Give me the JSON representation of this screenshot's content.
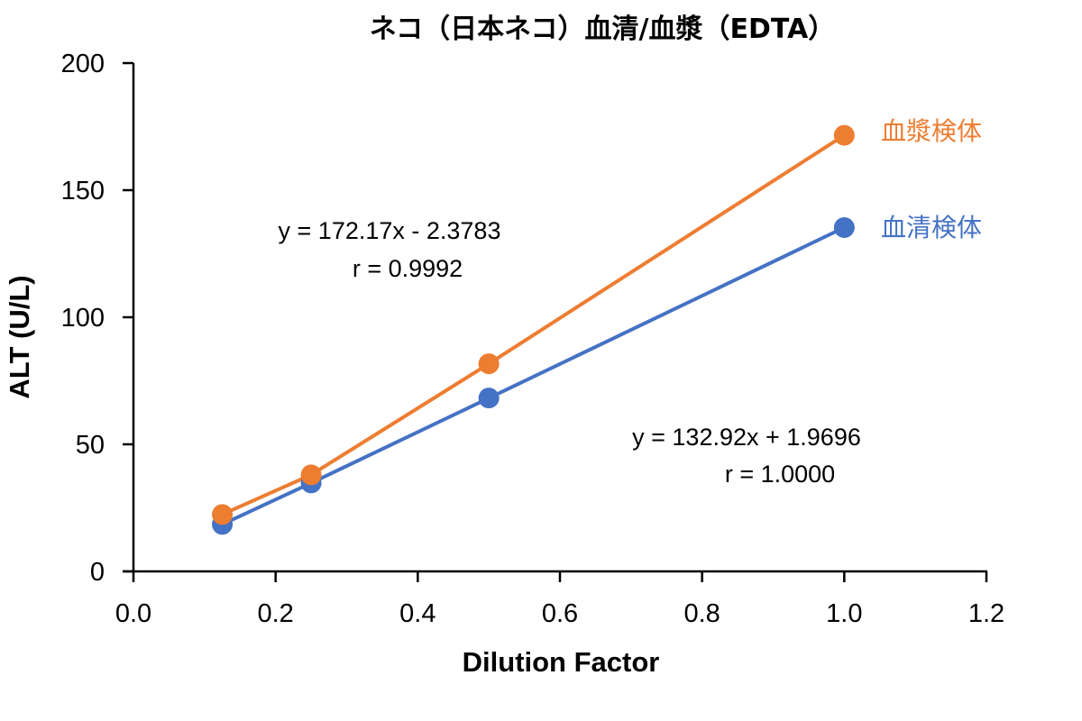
{
  "chart_data": {
    "type": "scatter",
    "title": "ネコ（日本ネコ）血清/血漿（EDTA）",
    "xlabel": "Dilution Factor",
    "ylabel": "ALT (U/L)",
    "xlim": [
      0.0,
      1.2
    ],
    "ylim": [
      0,
      200
    ],
    "x_ticks": [
      "0.0",
      "0.2",
      "0.4",
      "0.6",
      "0.8",
      "1.0",
      "1.2"
    ],
    "x_tick_values": [
      0.0,
      0.2,
      0.4,
      0.6,
      0.8,
      1.0,
      1.2
    ],
    "y_ticks": [
      "0",
      "50",
      "100",
      "150",
      "200"
    ],
    "y_tick_values": [
      0,
      50,
      100,
      150,
      200
    ],
    "grid": false,
    "legend_position": "right, inline labels",
    "series": [
      {
        "name": "血漿検体",
        "color": "#ED7D31",
        "x": [
          0.125,
          0.25,
          0.5,
          1.0
        ],
        "values": [
          22.4,
          38.0,
          81.7,
          171.6
        ],
        "equation": "y = 172.17x - 2.3783",
        "r": "r = 0.9992"
      },
      {
        "name": "血清検体",
        "color": "#4472C4",
        "x": [
          0.125,
          0.25,
          0.5,
          1.0
        ],
        "values": [
          18.5,
          34.8,
          68.2,
          135.3
        ],
        "equation": "y = 132.92x + 1.9696",
        "r": "r = 1.0000"
      }
    ]
  }
}
